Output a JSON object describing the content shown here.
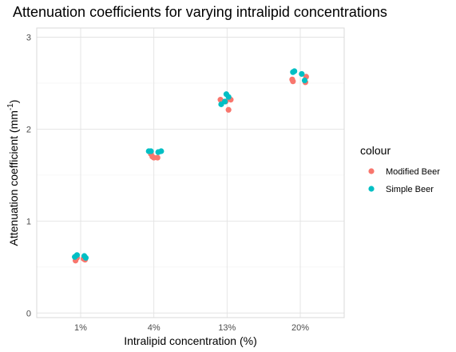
{
  "chart_data": {
    "type": "scatter",
    "title": "Attenuation coefficients for varying intralipid concentrations",
    "xlabel": "Intralipid concentration (%)",
    "ylabel": "Attenuation coefficient",
    "ylabel_unit_base": "mm",
    "ylabel_unit_exp": "-1",
    "categories": [
      "1%",
      "4%",
      "13%",
      "20%"
    ],
    "ylim": [
      -0.05,
      3.1
    ],
    "yticks": [
      0,
      1,
      2,
      3
    ],
    "grid": true,
    "legend_title": "colour",
    "legend_position": "right",
    "series": [
      {
        "name": "Modified Beer",
        "color": "#F8766D",
        "points": [
          {
            "category": "1%",
            "jitter": -0.07,
            "y": 0.57
          },
          {
            "category": "1%",
            "jitter": -0.05,
            "y": 0.6
          },
          {
            "category": "1%",
            "jitter": 0.04,
            "y": 0.59
          },
          {
            "category": "1%",
            "jitter": 0.06,
            "y": 0.58
          },
          {
            "category": "4%",
            "jitter": -0.02,
            "y": 1.7
          },
          {
            "category": "4%",
            "jitter": 0.0,
            "y": 1.69
          },
          {
            "category": "4%",
            "jitter": 0.05,
            "y": 1.69
          },
          {
            "category": "4%",
            "jitter": -0.04,
            "y": 1.73
          },
          {
            "category": "13%",
            "jitter": -0.09,
            "y": 2.32
          },
          {
            "category": "13%",
            "jitter": 0.02,
            "y": 2.21
          },
          {
            "category": "13%",
            "jitter": 0.05,
            "y": 2.32
          },
          {
            "category": "13%",
            "jitter": -0.02,
            "y": 2.3
          },
          {
            "category": "20%",
            "jitter": -0.11,
            "y": 2.54
          },
          {
            "category": "20%",
            "jitter": -0.1,
            "y": 2.52
          },
          {
            "category": "20%",
            "jitter": 0.07,
            "y": 2.51
          },
          {
            "category": "20%",
            "jitter": 0.08,
            "y": 2.57
          }
        ]
      },
      {
        "name": "Simple Beer",
        "color": "#00BFC4",
        "points": [
          {
            "category": "1%",
            "jitter": -0.08,
            "y": 0.61
          },
          {
            "category": "1%",
            "jitter": -0.05,
            "y": 0.63
          },
          {
            "category": "1%",
            "jitter": 0.05,
            "y": 0.62
          },
          {
            "category": "1%",
            "jitter": 0.07,
            "y": 0.6
          },
          {
            "category": "4%",
            "jitter": -0.07,
            "y": 1.76
          },
          {
            "category": "4%",
            "jitter": -0.04,
            "y": 1.76
          },
          {
            "category": "4%",
            "jitter": 0.06,
            "y": 1.75
          },
          {
            "category": "4%",
            "jitter": 0.1,
            "y": 1.76
          },
          {
            "category": "13%",
            "jitter": -0.08,
            "y": 2.27
          },
          {
            "category": "13%",
            "jitter": -0.03,
            "y": 2.3
          },
          {
            "category": "13%",
            "jitter": -0.01,
            "y": 2.38
          },
          {
            "category": "13%",
            "jitter": 0.02,
            "y": 2.35
          },
          {
            "category": "20%",
            "jitter": -0.1,
            "y": 2.62
          },
          {
            "category": "20%",
            "jitter": -0.08,
            "y": 2.63
          },
          {
            "category": "20%",
            "jitter": 0.02,
            "y": 2.6
          },
          {
            "category": "20%",
            "jitter": 0.06,
            "y": 2.53
          }
        ]
      }
    ]
  }
}
